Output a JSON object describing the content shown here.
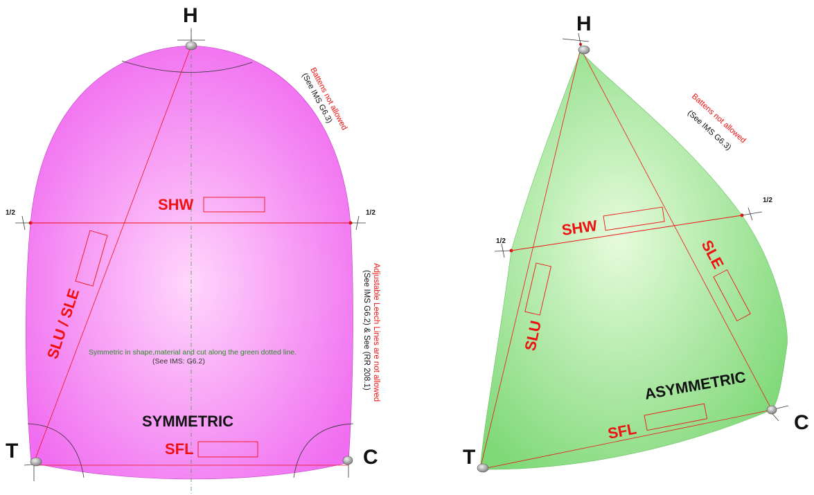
{
  "colors": {
    "symmetric_fill_center": "#ffd6fb",
    "symmetric_fill_edge": "#f06cf0",
    "asymmetric_fill_center": "#e6fbdc",
    "asymmetric_fill_edge": "#7ed877",
    "measure_lines": "#ee1111",
    "centerline": "#4a9a4a"
  },
  "symmetric": {
    "corner_head": "H",
    "corner_tack": "T",
    "corner_clew": "C",
    "label_shw": "SHW",
    "label_sfl": "SFL",
    "label_slu_sle": "SLU / SLE",
    "half_left": "1/2",
    "half_right": "1/2",
    "title": "SYMMETRIC",
    "battens_note": "Battens not allowed",
    "battens_ref": "(See IMS G6.3)",
    "leech_note": "Adjustable Leech Lines are not allowed",
    "leech_ref": "(See IMS G6.2) & See (RR 208.1)",
    "symmetry_note": "Symmetric in shape,material and cut along the green dotted line.",
    "symmetry_ref": "(See IMS: G6.2)"
  },
  "asymmetric": {
    "corner_head": "H",
    "corner_tack": "T",
    "corner_clew": "C",
    "label_shw": "SHW",
    "label_sfl": "SFL",
    "label_slu": "SLU",
    "label_sle": "SLE",
    "half_left": "1/2",
    "half_right": "1/2",
    "title": "ASYMMETRIC",
    "battens_note": "Battens not allowed",
    "battens_ref": "(See IMS G6.3)"
  },
  "icons": [
    "corner-ring-icon",
    "measure-tick-icon"
  ]
}
